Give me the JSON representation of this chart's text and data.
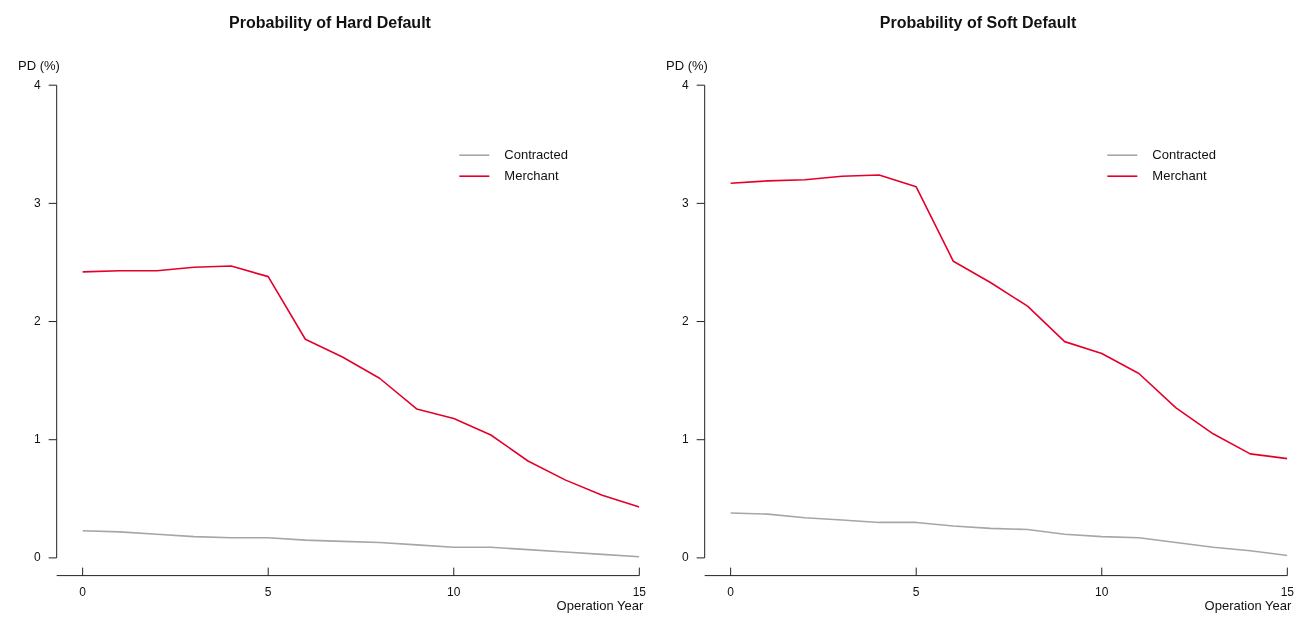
{
  "chart_data": [
    {
      "type": "line",
      "title": "Probability of Hard Default",
      "xlabel": "Operation Year",
      "ylabel": "PD (%)",
      "x": [
        0,
        1,
        2,
        3,
        4,
        5,
        6,
        7,
        8,
        9,
        10,
        11,
        12,
        13,
        14,
        15
      ],
      "xlim": [
        -0.7,
        15
      ],
      "xticks": [
        0,
        5,
        10,
        15
      ],
      "ylim": [
        -0.15,
        4
      ],
      "yticks": [
        0,
        1,
        2,
        3,
        4
      ],
      "grid": false,
      "legend": "top right",
      "marker": "none",
      "line_style": "solid",
      "series": [
        {
          "name": "Contracted",
          "color": "#a6a6a6",
          "values": [
            0.23,
            0.22,
            0.2,
            0.18,
            0.17,
            0.17,
            0.15,
            0.14,
            0.13,
            0.11,
            0.09,
            0.09,
            0.07,
            0.05,
            0.03,
            0.01
          ]
        },
        {
          "name": "Merchant",
          "color": "#e4002b",
          "values": [
            2.42,
            2.43,
            2.43,
            2.46,
            2.47,
            2.38,
            1.85,
            1.7,
            1.52,
            1.26,
            1.18,
            1.04,
            0.82,
            0.66,
            0.53,
            0.43
          ]
        }
      ]
    },
    {
      "type": "line",
      "title": "Probability of Soft Default",
      "xlabel": "Operation Year",
      "ylabel": "PD (%)",
      "x": [
        0,
        1,
        2,
        3,
        4,
        5,
        6,
        7,
        8,
        9,
        10,
        11,
        12,
        13,
        14,
        15
      ],
      "xlim": [
        -0.7,
        15
      ],
      "xticks": [
        0,
        5,
        10,
        15
      ],
      "ylim": [
        -0.15,
        4
      ],
      "yticks": [
        0,
        1,
        2,
        3,
        4
      ],
      "grid": false,
      "legend": "top right",
      "marker": "none",
      "line_style": "solid",
      "series": [
        {
          "name": "Contracted",
          "color": "#a6a6a6",
          "values": [
            0.38,
            0.37,
            0.34,
            0.32,
            0.3,
            0.3,
            0.27,
            0.25,
            0.24,
            0.2,
            0.18,
            0.17,
            0.13,
            0.09,
            0.06,
            0.02
          ]
        },
        {
          "name": "Merchant",
          "color": "#e4002b",
          "values": [
            3.17,
            3.19,
            3.2,
            3.23,
            3.24,
            3.14,
            2.51,
            2.33,
            2.13,
            1.83,
            1.73,
            1.56,
            1.27,
            1.05,
            0.88,
            0.84
          ]
        }
      ]
    }
  ]
}
